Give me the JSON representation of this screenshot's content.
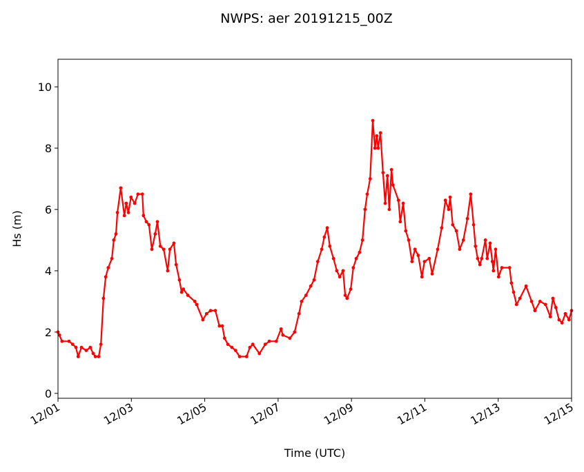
{
  "chart_data": {
    "type": "line",
    "title": "NWPS: aer 20191215_00Z",
    "xlabel": "Time (UTC)",
    "ylabel": "Hs (m)",
    "xlim": [
      0,
      14
    ],
    "ylim": [
      -0.16,
      10.9
    ],
    "x_units": "days since 12/01 00Z",
    "x_ticks": [
      0,
      2,
      4,
      6,
      8,
      10,
      12,
      14
    ],
    "x_tick_labels": [
      "12/01",
      "12/03",
      "12/05",
      "12/07",
      "12/09",
      "12/11",
      "12/13",
      "12/15"
    ],
    "y_ticks": [
      0,
      2,
      4,
      6,
      8,
      10
    ],
    "y_tick_labels": [
      "0",
      "2",
      "4",
      "6",
      "8",
      "10"
    ],
    "grid": false,
    "series": [
      {
        "name": "Hs",
        "color": "#ff0000",
        "marker": "circle",
        "x": [
          0,
          0.04,
          0.11,
          0.3,
          0.4,
          0.49,
          0.55,
          0.64,
          0.77,
          0.88,
          0.96,
          1.02,
          1.11,
          1.17,
          1.24,
          1.3,
          1.37,
          1.47,
          1.52,
          1.58,
          1.62,
          1.71,
          1.81,
          1.86,
          1.92,
          1.99,
          2.09,
          2.18,
          2.3,
          2.33,
          2.41,
          2.48,
          2.56,
          2.65,
          2.71,
          2.79,
          2.88,
          2.99,
          3.05,
          3.16,
          3.22,
          3.31,
          3.37,
          3.42,
          3.54,
          3.73,
          3.78,
          3.95,
          4.05,
          4.16,
          4.29,
          4.4,
          4.48,
          4.54,
          4.63,
          4.74,
          4.84,
          4.95,
          5.14,
          5.23,
          5.31,
          5.49,
          5.65,
          5.76,
          5.95,
          6.08,
          6.13,
          6.32,
          6.45,
          6.57,
          6.64,
          6.76,
          6.89,
          6.98,
          7.08,
          7.19,
          7.26,
          7.34,
          7.41,
          7.51,
          7.6,
          7.68,
          7.77,
          7.83,
          7.88,
          7.98,
          8.05,
          8.13,
          8.22,
          8.3,
          8.37,
          8.43,
          8.51,
          8.58,
          8.64,
          8.69,
          8.73,
          8.79,
          8.86,
          8.92,
          8.98,
          9.03,
          9.09,
          9.13,
          9.28,
          9.33,
          9.41,
          9.48,
          9.56,
          9.65,
          9.73,
          9.82,
          9.92,
          9.99,
          10.12,
          10.2,
          10.35,
          10.46,
          10.56,
          10.65,
          10.69,
          10.76,
          10.86,
          10.95,
          11.05,
          11.16,
          11.25,
          11.33,
          11.38,
          11.44,
          11.5,
          11.55,
          11.65,
          11.7,
          11.78,
          11.84,
          11.87,
          11.93,
          12.01,
          12.1,
          12.31,
          12.36,
          12.42,
          12.5,
          12.59,
          12.76,
          12.91,
          13.0,
          13.14,
          13.29,
          13.42,
          13.49,
          13.57,
          13.66,
          13.74,
          13.83,
          13.93,
          14.0
        ],
        "y": [
          2.0,
          1.9,
          1.7,
          1.7,
          1.6,
          1.5,
          1.2,
          1.5,
          1.4,
          1.5,
          1.3,
          1.2,
          1.2,
          1.6,
          3.1,
          3.8,
          4.1,
          4.4,
          5.0,
          5.2,
          5.9,
          6.7,
          5.8,
          6.2,
          5.9,
          6.4,
          6.2,
          6.5,
          6.5,
          5.8,
          5.6,
          5.5,
          4.7,
          5.2,
          5.6,
          4.8,
          4.7,
          4.0,
          4.7,
          4.9,
          4.2,
          3.7,
          3.3,
          3.4,
          3.2,
          3.0,
          2.9,
          2.4,
          2.6,
          2.7,
          2.7,
          2.2,
          2.2,
          1.8,
          1.6,
          1.5,
          1.4,
          1.2,
          1.2,
          1.5,
          1.6,
          1.3,
          1.6,
          1.7,
          1.7,
          2.1,
          1.9,
          1.8,
          2.0,
          2.6,
          3.0,
          3.2,
          3.5,
          3.7,
          4.3,
          4.7,
          5.1,
          5.4,
          4.8,
          4.4,
          4.0,
          3.8,
          4.0,
          3.2,
          3.1,
          3.4,
          4.1,
          4.4,
          4.6,
          5.0,
          6.0,
          6.5,
          7.0,
          8.9,
          8.0,
          8.4,
          8.0,
          8.5,
          7.2,
          6.2,
          7.1,
          6.0,
          7.3,
          6.8,
          6.3,
          5.6,
          6.2,
          5.3,
          5.0,
          4.3,
          4.7,
          4.5,
          3.8,
          4.3,
          4.4,
          3.9,
          4.7,
          5.4,
          6.3,
          6.0,
          6.4,
          5.5,
          5.3,
          4.7,
          5.0,
          5.7,
          6.5,
          5.5,
          4.8,
          4.4,
          4.2,
          4.4,
          5.0,
          4.4,
          4.9,
          4.3,
          4.0,
          4.7,
          3.8,
          4.1,
          4.1,
          3.6,
          3.3,
          2.9,
          3.1,
          3.5,
          3.0,
          2.7,
          3.0,
          2.9,
          2.5,
          3.1,
          2.8,
          2.4,
          2.3,
          2.6,
          2.4,
          2.7
        ]
      }
    ]
  }
}
